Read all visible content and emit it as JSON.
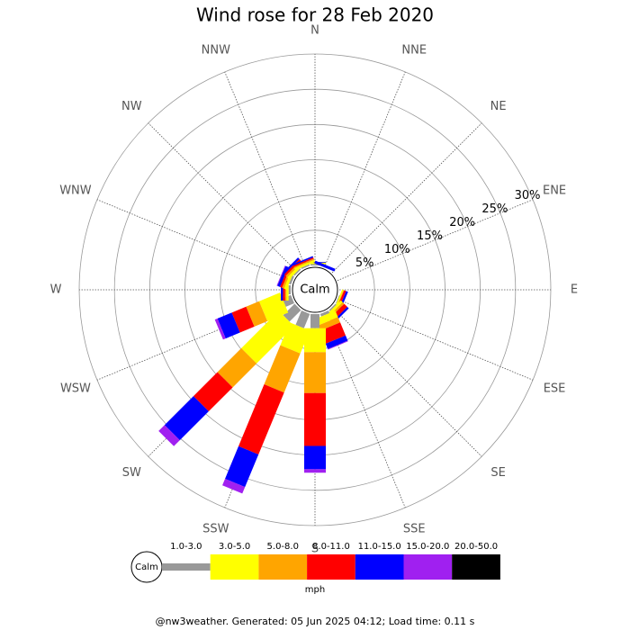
{
  "chart_data": {
    "type": "windrose",
    "title": "Wind rose for 28 Feb 2020",
    "categories": [
      "N",
      "NNE",
      "NE",
      "ENE",
      "E",
      "ESE",
      "SE",
      "SSE",
      "S",
      "SSW",
      "SW",
      "WSW",
      "W",
      "WNW",
      "NW",
      "NNW"
    ],
    "calm_label": "Calm",
    "legend_title": "mph",
    "footer": "@nw3weather. Generated: 05 Jun 2025 04:12; Load time: 0.11 s",
    "rlim": [
      0,
      30
    ],
    "rticks": [
      {
        "value": 5,
        "label": "5%"
      },
      {
        "value": 10,
        "label": "10%"
      },
      {
        "value": 15,
        "label": "15%"
      },
      {
        "value": 20,
        "label": "20%"
      },
      {
        "value": 25,
        "label": "25%"
      },
      {
        "value": 30,
        "label": "30%"
      }
    ],
    "series": [
      {
        "name": "1.0-3.0",
        "color": "#999999",
        "values": [
          0.2,
          0,
          0,
          0,
          0,
          0.1,
          0.2,
          0.4,
          2.0,
          2.2,
          2.3,
          1.3,
          0.3,
          0.3,
          0.2,
          0.2
        ]
      },
      {
        "name": "3.0-5.0",
        "color": "#ffff00",
        "values": [
          0.2,
          0,
          0,
          0,
          0,
          0.2,
          0.4,
          1.0,
          3.4,
          3.5,
          7.5,
          3.2,
          0.3,
          0.4,
          0.4,
          0.3
        ]
      },
      {
        "name": "5.0-8.0",
        "color": "#ffa500",
        "values": [
          0,
          0,
          0,
          0,
          0,
          0.1,
          0.3,
          0.8,
          5.8,
          6.0,
          4.8,
          2.0,
          0.2,
          0.3,
          0.3,
          0.2
        ]
      },
      {
        "name": "8.0-11.0",
        "color": "#ff0000",
        "values": [
          0,
          0,
          0,
          0,
          0,
          0.3,
          0.6,
          2.0,
          7.5,
          9.5,
          4.8,
          2.2,
          0.3,
          0.3,
          0.3,
          0.2
        ]
      },
      {
        "name": "11.0-15.0",
        "color": "#0000ff",
        "values": [
          0.1,
          0.4,
          0,
          0,
          0,
          0.3,
          0.3,
          0.8,
          3.3,
          5.0,
          5.8,
          2.2,
          0.3,
          0.4,
          0.3,
          0.2
        ]
      },
      {
        "name": "15.0-20.0",
        "color": "#a020f0",
        "values": [
          0,
          0,
          0,
          0,
          0,
          0,
          0,
          0.1,
          0.5,
          1.0,
          1.2,
          0.4,
          0,
          0.1,
          0,
          0
        ]
      },
      {
        "name": "20.0-50.0",
        "color": "#000000",
        "values": [
          0,
          0,
          0,
          0,
          0,
          0,
          0,
          0,
          0,
          0,
          0,
          0,
          0,
          0,
          0,
          0
        ]
      }
    ]
  }
}
